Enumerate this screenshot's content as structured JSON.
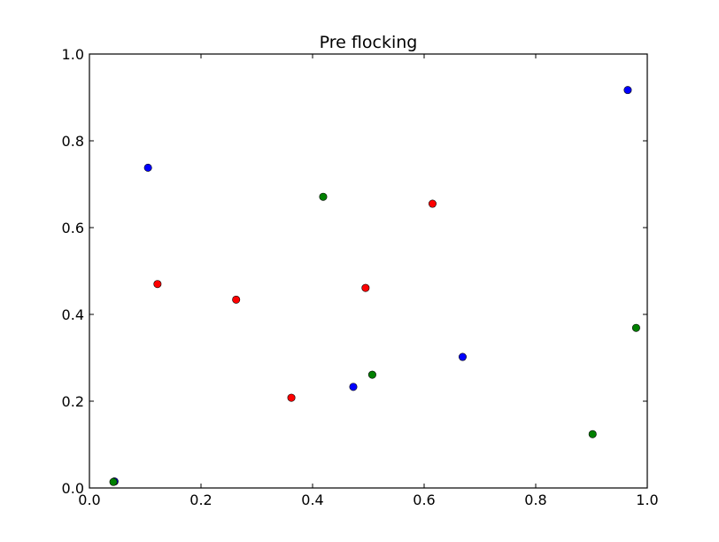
{
  "chart_data": {
    "type": "scatter",
    "title": "Pre flocking",
    "xlabel": "",
    "ylabel": "",
    "xlim": [
      0.0,
      1.0
    ],
    "ylim": [
      0.0,
      1.0
    ],
    "grid": false,
    "x_ticks": [
      "0.0",
      "0.2",
      "0.4",
      "0.6",
      "0.8",
      "1.0"
    ],
    "y_ticks": [
      "0.0",
      "0.2",
      "0.4",
      "0.6",
      "0.8",
      "1.0"
    ],
    "series": [
      {
        "color": "#0000ff",
        "points": [
          {
            "x": 0.105,
            "y": 0.738
          },
          {
            "x": 0.965,
            "y": 0.917
          },
          {
            "x": 0.473,
            "y": 0.233
          },
          {
            "x": 0.669,
            "y": 0.302
          },
          {
            "x": 0.045,
            "y": 0.015
          }
        ]
      },
      {
        "color": "#ff0000",
        "points": [
          {
            "x": 0.122,
            "y": 0.47
          },
          {
            "x": 0.263,
            "y": 0.434
          },
          {
            "x": 0.362,
            "y": 0.208
          },
          {
            "x": 0.495,
            "y": 0.461
          },
          {
            "x": 0.615,
            "y": 0.655
          }
        ]
      },
      {
        "color": "#008000",
        "points": [
          {
            "x": 0.419,
            "y": 0.671
          },
          {
            "x": 0.507,
            "y": 0.261
          },
          {
            "x": 0.902,
            "y": 0.124
          },
          {
            "x": 0.98,
            "y": 0.369
          },
          {
            "x": 0.043,
            "y": 0.014
          }
        ]
      }
    ]
  }
}
